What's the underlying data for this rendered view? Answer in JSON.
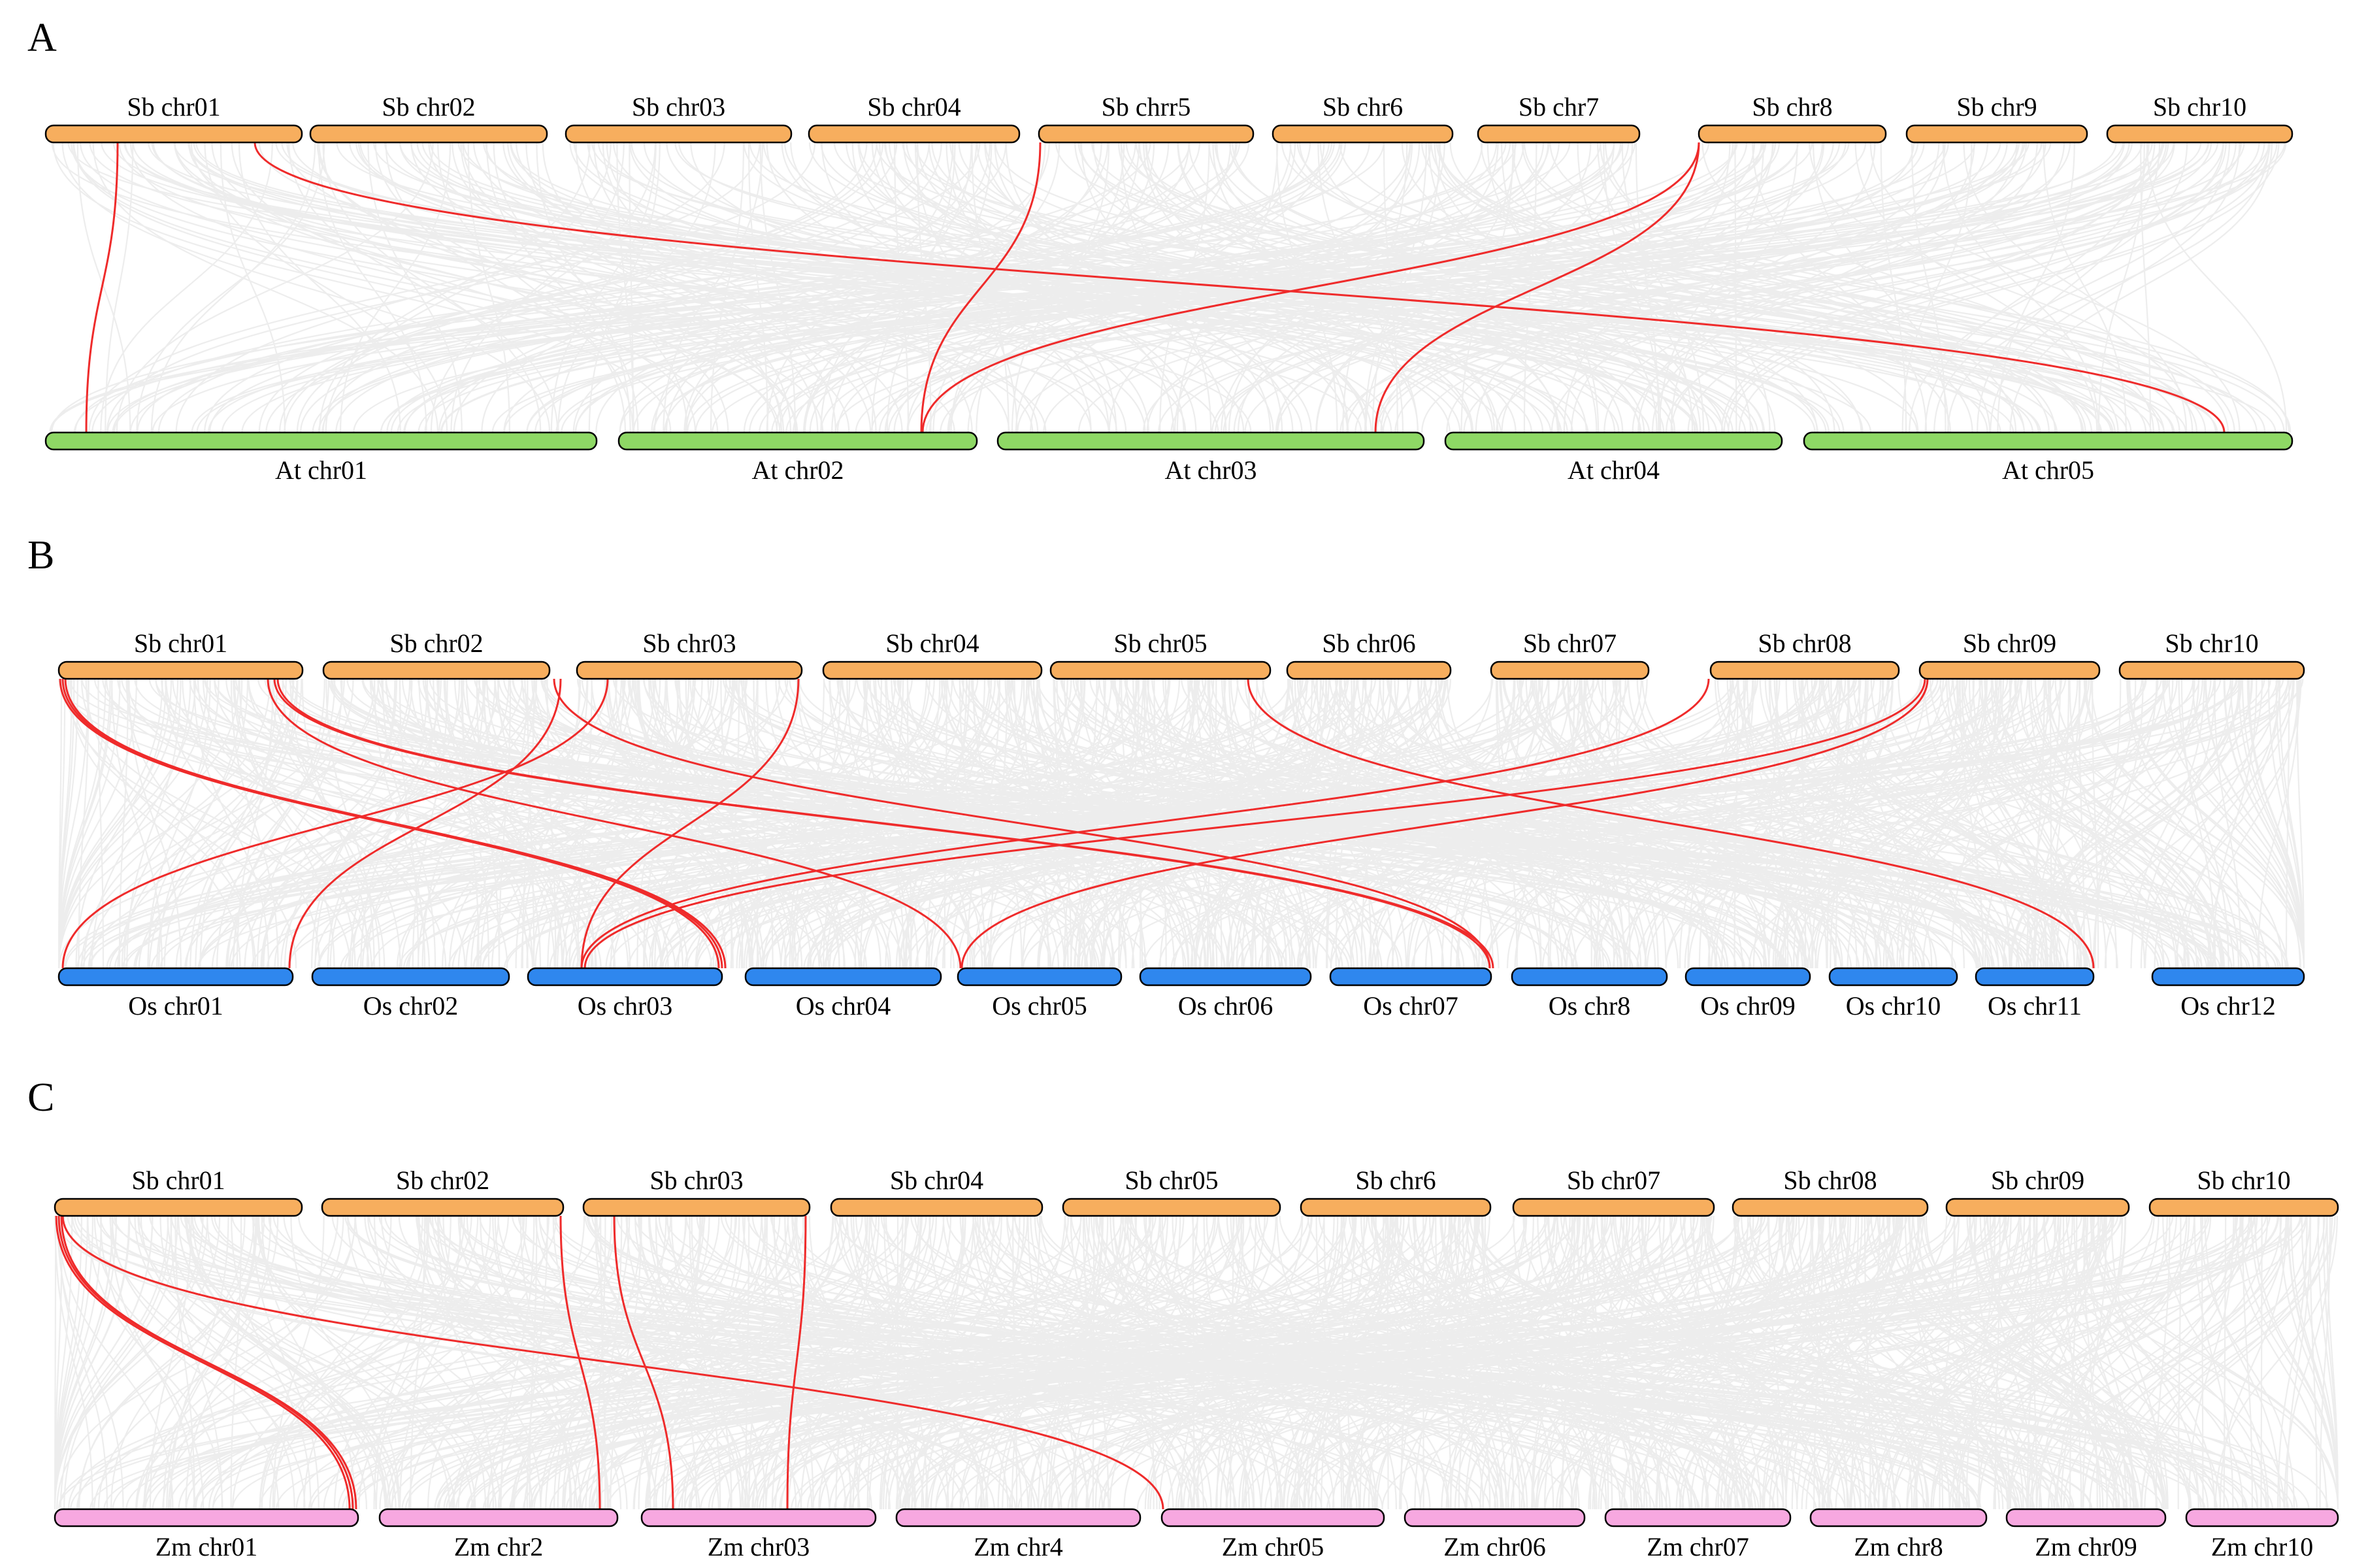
{
  "figure": {
    "colors": {
      "sorghum": "#F7AE5E",
      "arabidopsis": "#8ED865",
      "rice": "#2F87EE",
      "maize": "#F7A8E0",
      "highlight_link": "#EF2B2B",
      "background_link": "#DEDEDE"
    },
    "panels": [
      {
        "letter": "A",
        "top_label": "Sb chr01 … Sb chr10",
        "bottom_label": "At chr01 … At chr05",
        "top_species": "sorghum",
        "bottom_species": "arabidopsis",
        "top": [
          "Sb chr01",
          "Sb chr02",
          "Sb chr03",
          "Sb chr04",
          "Sb chrr5",
          "Sb chr6",
          "Sb chr7",
          "Sb chr8",
          "Sb chr9",
          "Sb chr10"
        ],
        "bottom": [
          "At chr01",
          "At chr02",
          "At chr03",
          "At chr04",
          "At chr05"
        ],
        "highlight_links": [
          {
            "from": "Sb chr01",
            "to": "At chr01"
          },
          {
            "from": "Sb chr01",
            "to": "At chr05"
          },
          {
            "from": "Sb chrr5",
            "to": "At chr02"
          },
          {
            "from": "Sb chr8",
            "to": "At chr02"
          },
          {
            "from": "Sb chr8",
            "to": "At chr03"
          }
        ]
      },
      {
        "letter": "B",
        "top_species": "sorghum",
        "bottom_species": "rice",
        "top": [
          "Sb chr01",
          "Sb chr02",
          "Sb chr03",
          "Sb chr04",
          "Sb chr05",
          "Sb chr06",
          "Sb chr07",
          "Sb chr08",
          "Sb chr09",
          "Sb chr10"
        ],
        "bottom": [
          "Os chr01",
          "Os chr02",
          "Os chr03",
          "Os chr04",
          "Os chr05",
          "Os chr06",
          "Os chr07",
          "Os chr8",
          "Os chr09",
          "Os chr10",
          "Os chr11",
          "Os chr12"
        ],
        "highlight_links": [
          {
            "from": "Sb chr01",
            "to": "Os chr03"
          },
          {
            "from": "Sb chr01",
            "to": "Os chr03"
          },
          {
            "from": "Sb chr01",
            "to": "Os chr03"
          },
          {
            "from": "Sb chr01",
            "to": "Os chr05"
          },
          {
            "from": "Sb chr01",
            "to": "Os chr07"
          },
          {
            "from": "Sb chr01",
            "to": "Os chr07"
          },
          {
            "from": "Sb chr03",
            "to": "Os chr01"
          },
          {
            "from": "Sb chr03",
            "to": "Os chr02"
          },
          {
            "from": "Sb chr03",
            "to": "Os chr03"
          },
          {
            "from": "Sb chr03",
            "to": "Os chr07"
          },
          {
            "from": "Sb chr05",
            "to": "Os chr11"
          },
          {
            "from": "Sb chr08",
            "to": "Os chr03"
          },
          {
            "from": "Sb chr09",
            "to": "Os chr03"
          },
          {
            "from": "Sb chr09",
            "to": "Os chr05"
          }
        ]
      },
      {
        "letter": "C",
        "top_species": "sorghum",
        "bottom_species": "maize",
        "top": [
          "Sb chr01",
          "Sb chr02",
          "Sb chr03",
          "Sb chr04",
          "Sb chr05",
          "Sb chr6",
          "Sb chr07",
          "Sb chr08",
          "Sb chr09",
          "Sb chr10"
        ],
        "bottom": [
          "Zm chr01",
          "Zm chr2",
          "Zm chr03",
          "Zm chr4",
          "Zm chr05",
          "Zm chr06",
          "Zm chr07",
          "Zm chr8",
          "Zm chr09",
          "Zm chr10"
        ],
        "highlight_links": [
          {
            "from": "Sb chr01",
            "to": "Zm chr01"
          },
          {
            "from": "Sb chr01",
            "to": "Zm chr01"
          },
          {
            "from": "Sb chr01",
            "to": "Zm chr01"
          },
          {
            "from": "Sb chr01",
            "to": "Zm chr05"
          },
          {
            "from": "Sb chr02",
            "to": "Zm chr2"
          },
          {
            "from": "Sb chr03",
            "to": "Zm chr03"
          },
          {
            "from": "Sb chr03",
            "to": "Zm chr03"
          }
        ]
      }
    ]
  }
}
